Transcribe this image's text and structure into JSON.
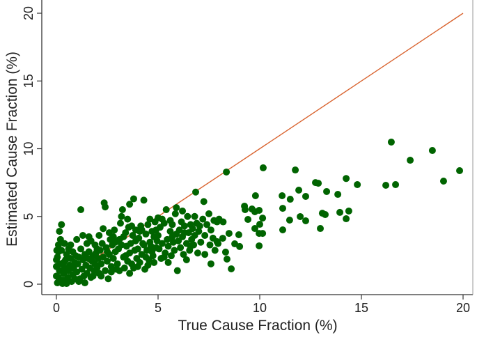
{
  "chart_data": {
    "type": "scatter",
    "title": "",
    "xlabel": "True Cause Fraction (%)",
    "ylabel": "Estimated Cause Fraction (%)",
    "xlim": [
      0,
      20
    ],
    "ylim": [
      0,
      20
    ],
    "xticks": [
      "0",
      "5",
      "10",
      "15",
      "20"
    ],
    "yticks": [
      "0",
      "5",
      "10",
      "15",
      "20"
    ],
    "grid": false,
    "legend": "none",
    "colors": {
      "points": "#006400",
      "reference_line": "#d9632e",
      "axis": "#333333"
    },
    "reference_line": {
      "from": [
        0,
        0
      ],
      "to": [
        20,
        20
      ]
    },
    "points": [
      [
        0.05,
        0.1
      ],
      [
        0.1,
        0.5
      ],
      [
        0.15,
        1.0
      ],
      [
        0.2,
        1.5
      ],
      [
        0.05,
        2.0
      ],
      [
        0.1,
        2.4
      ],
      [
        0.3,
        0.3
      ],
      [
        0.35,
        0.8
      ],
      [
        0.4,
        1.2
      ],
      [
        0.45,
        1.8
      ],
      [
        0.5,
        2.2
      ],
      [
        0.25,
        2.5
      ],
      [
        0.55,
        0.5
      ],
      [
        0.6,
        1.0
      ],
      [
        0.65,
        1.4
      ],
      [
        0.7,
        1.9
      ],
      [
        0.75,
        0.2
      ],
      [
        0.8,
        0.7
      ],
      [
        0.85,
        1.2
      ],
      [
        0.9,
        1.6
      ],
      [
        0.95,
        2.1
      ],
      [
        0.2,
        3.3
      ],
      [
        0.15,
        3.9
      ],
      [
        0.25,
        4.4
      ],
      [
        0.1,
        2.9
      ],
      [
        0.3,
        0.05
      ],
      [
        0.5,
        0.05
      ],
      [
        0.6,
        2.6
      ],
      [
        0.4,
        3.0
      ],
      [
        0.7,
        2.9
      ],
      [
        0.0,
        0.6
      ],
      [
        0.0,
        1.3
      ],
      [
        0.0,
        1.8
      ],
      [
        0.02,
        2.5
      ],
      [
        0.12,
        0.2
      ],
      [
        0.35,
        1.6
      ],
      [
        0.55,
        1.9
      ],
      [
        0.8,
        2.4
      ],
      [
        0.9,
        0.4
      ],
      [
        0.45,
        0.1
      ],
      [
        1.0,
        0.9
      ],
      [
        1.05,
        1.5
      ],
      [
        1.1,
        2.0
      ],
      [
        1.15,
        0.4
      ],
      [
        1.2,
        2.6
      ],
      [
        1.25,
        1.1
      ],
      [
        1.3,
        1.8
      ],
      [
        1.35,
        0.6
      ],
      [
        1.4,
        2.2
      ],
      [
        1.45,
        1.4
      ],
      [
        1.5,
        0.8
      ],
      [
        1.55,
        1.9
      ],
      [
        1.6,
        2.4
      ],
      [
        1.65,
        1.2
      ],
      [
        1.7,
        0.5
      ],
      [
        1.75,
        1.7
      ],
      [
        1.8,
        2.1
      ],
      [
        1.85,
        1.0
      ],
      [
        1.9,
        1.5
      ],
      [
        1.95,
        2.3
      ],
      [
        1.2,
        5.5
      ],
      [
        1.0,
        3.3
      ],
      [
        1.3,
        3.6
      ],
      [
        1.5,
        3.0
      ],
      [
        1.7,
        3.2
      ],
      [
        1.1,
        0.2
      ],
      [
        1.4,
        0.1
      ],
      [
        1.8,
        0.6
      ],
      [
        1.9,
        2.9
      ],
      [
        1.6,
        3.5
      ],
      [
        2.0,
        1.2
      ],
      [
        2.05,
        1.9
      ],
      [
        2.1,
        0.8
      ],
      [
        2.15,
        2.5
      ],
      [
        2.2,
        1.5
      ],
      [
        2.25,
        3.0
      ],
      [
        2.3,
        2.0
      ],
      [
        2.35,
        6.0
      ],
      [
        2.4,
        5.7
      ],
      [
        2.4,
        1.0
      ],
      [
        2.45,
        2.7
      ],
      [
        2.5,
        1.7
      ],
      [
        2.55,
        0.4
      ],
      [
        2.6,
        2.2
      ],
      [
        2.65,
        3.3
      ],
      [
        2.7,
        1.3
      ],
      [
        2.75,
        2.9
      ],
      [
        2.8,
        1.9
      ],
      [
        2.85,
        4.0
      ],
      [
        2.9,
        2.4
      ],
      [
        2.95,
        1.1
      ],
      [
        2.1,
        3.6
      ],
      [
        2.3,
        4.1
      ],
      [
        2.6,
        3.8
      ],
      [
        2.2,
        0.6
      ],
      [
        2.5,
        2.4
      ],
      [
        2.8,
        3.5
      ],
      [
        2.0,
        2.6
      ],
      [
        2.7,
        0.9
      ],
      [
        2.9,
        3.1
      ],
      [
        3.0,
        1.5
      ],
      [
        3.05,
        2.6
      ],
      [
        3.1,
        3.3
      ],
      [
        3.15,
        4.5
      ],
      [
        3.2,
        5.0
      ],
      [
        3.25,
        5.5
      ],
      [
        3.3,
        2.0
      ],
      [
        3.35,
        1.2
      ],
      [
        3.4,
        3.8
      ],
      [
        3.45,
        2.8
      ],
      [
        3.5,
        1.7
      ],
      [
        3.55,
        4.2
      ],
      [
        3.6,
        2.3
      ],
      [
        3.65,
        3.0
      ],
      [
        3.7,
        1.5
      ],
      [
        3.75,
        3.6
      ],
      [
        3.8,
        6.3
      ],
      [
        3.85,
        2.5
      ],
      [
        3.9,
        4.0
      ],
      [
        3.95,
        1.9
      ],
      [
        3.1,
        1.0
      ],
      [
        3.3,
        3.5
      ],
      [
        3.5,
        4.8
      ],
      [
        3.6,
        5.9
      ],
      [
        3.7,
        4.3
      ],
      [
        3.9,
        3.2
      ],
      [
        3.4,
        2.1
      ],
      [
        3.8,
        1.2
      ],
      [
        3.2,
        2.9
      ],
      [
        3.6,
        0.8
      ],
      [
        4.0,
        2.6
      ],
      [
        4.05,
        3.4
      ],
      [
        4.1,
        1.6
      ],
      [
        4.15,
        4.3
      ],
      [
        4.2,
        2.2
      ],
      [
        4.25,
        3.0
      ],
      [
        4.3,
        6.2
      ],
      [
        4.35,
        1.1
      ],
      [
        4.4,
        3.7
      ],
      [
        4.45,
        2.5
      ],
      [
        4.5,
        4.4
      ],
      [
        4.55,
        1.8
      ],
      [
        4.6,
        3.1
      ],
      [
        4.65,
        2.8
      ],
      [
        4.7,
        3.9
      ],
      [
        4.75,
        2.1
      ],
      [
        4.8,
        3.5
      ],
      [
        4.85,
        4.6
      ],
      [
        4.9,
        2.7
      ],
      [
        4.95,
        3.2
      ],
      [
        4.1,
        3.9
      ],
      [
        4.3,
        2.9
      ],
      [
        4.5,
        1.4
      ],
      [
        4.7,
        2.4
      ],
      [
        4.9,
        4.0
      ],
      [
        4.2,
        4.0
      ],
      [
        4.4,
        2.0
      ],
      [
        4.6,
        4.8
      ],
      [
        4.8,
        1.6
      ],
      [
        4.0,
        1.3
      ],
      [
        5.0,
        3.6
      ],
      [
        5.05,
        2.6
      ],
      [
        5.1,
        4.2
      ],
      [
        5.15,
        1.9
      ],
      [
        5.2,
        3.0
      ],
      [
        5.3,
        4.5
      ],
      [
        5.35,
        2.3
      ],
      [
        5.4,
        5.5
      ],
      [
        5.45,
        3.3
      ],
      [
        5.5,
        2.8
      ],
      [
        5.6,
        3.9
      ],
      [
        5.65,
        2.1
      ],
      [
        5.7,
        4.4
      ],
      [
        5.75,
        3.1
      ],
      [
        5.8,
        2.5
      ],
      [
        5.85,
        5.2
      ],
      [
        5.9,
        3.7
      ],
      [
        5.95,
        1.0
      ],
      [
        5.2,
        4.8
      ],
      [
        5.5,
        1.6
      ],
      [
        5.6,
        4.7
      ],
      [
        5.9,
        5.65
      ],
      [
        5.3,
        2.0
      ],
      [
        5.7,
        3.5
      ],
      [
        5.0,
        4.9
      ],
      [
        6.0,
        3.2
      ],
      [
        6.05,
        4.0
      ],
      [
        6.1,
        2.7
      ],
      [
        6.15,
        4.6
      ],
      [
        6.2,
        3.5
      ],
      [
        6.25,
        2.2
      ],
      [
        6.3,
        4.3
      ],
      [
        6.4,
        3.0
      ],
      [
        6.45,
        5.0
      ],
      [
        6.5,
        3.8
      ],
      [
        6.55,
        2.5
      ],
      [
        6.6,
        4.4
      ],
      [
        6.65,
        3.3
      ],
      [
        6.7,
        4.1
      ],
      [
        6.75,
        2.9
      ],
      [
        6.8,
        3.6
      ],
      [
        6.85,
        6.8
      ],
      [
        6.9,
        4.5
      ],
      [
        6.95,
        2.3
      ],
      [
        6.2,
        5.4
      ],
      [
        6.4,
        1.8
      ],
      [
        6.6,
        2.8
      ],
      [
        6.8,
        5.0
      ],
      [
        6.3,
        3.8
      ],
      [
        7.0,
        3.9
      ],
      [
        7.05,
        4.3
      ],
      [
        7.1,
        3.1
      ],
      [
        7.2,
        4.8
      ],
      [
        7.25,
        6.1
      ],
      [
        7.3,
        3.6
      ],
      [
        7.4,
        4.4
      ],
      [
        7.5,
        5.2
      ],
      [
        7.55,
        2.9
      ],
      [
        7.6,
        4.0
      ],
      [
        7.7,
        3.4
      ],
      [
        7.75,
        4.7
      ],
      [
        7.8,
        2.5
      ],
      [
        7.9,
        4.6
      ],
      [
        7.95,
        3.0
      ],
      [
        7.6,
        1.5
      ],
      [
        7.9,
        3.14
      ],
      [
        8.0,
        4.8
      ],
      [
        8.2,
        4.6
      ],
      [
        8.18,
        3.39
      ],
      [
        7.3,
        2.2
      ],
      [
        8.36,
        8.28
      ],
      [
        8.49,
        3.75
      ],
      [
        8.77,
        2.98
      ],
      [
        9.01,
        2.78
      ],
      [
        8.32,
        2.37
      ],
      [
        8.39,
        1.85
      ],
      [
        8.6,
        1.13
      ],
      [
        8.97,
        3.65
      ],
      [
        9.79,
        6.53
      ],
      [
        9.25,
        5.76
      ],
      [
        9.28,
        5.5
      ],
      [
        9.62,
        5.55
      ],
      [
        9.97,
        5.45
      ],
      [
        9.76,
        5.35
      ],
      [
        10.14,
        4.88
      ],
      [
        9.42,
        4.78
      ],
      [
        10.0,
        4.42
      ],
      [
        9.76,
        4.11
      ],
      [
        9.97,
        3.75
      ],
      [
        10.14,
        3.75
      ],
      [
        9.97,
        2.83
      ],
      [
        10.17,
        8.59
      ],
      [
        11.75,
        8.43
      ],
      [
        12.74,
        7.5
      ],
      [
        12.88,
        7.45
      ],
      [
        13.29,
        6.84
      ],
      [
        13.84,
        6.63
      ],
      [
        11.92,
        6.94
      ],
      [
        12.26,
        6.48
      ],
      [
        11.1,
        6.53
      ],
      [
        11.5,
        6.27
      ],
      [
        11.13,
        5.6
      ],
      [
        13.94,
        5.3
      ],
      [
        14.38,
        5.4
      ],
      [
        14.25,
        4.83
      ],
      [
        13.08,
        5.24
      ],
      [
        13.22,
        5.14
      ],
      [
        11.47,
        4.73
      ],
      [
        11.99,
        4.99
      ],
      [
        12.26,
        4.68
      ],
      [
        11.13,
        4.01
      ],
      [
        12.98,
        4.11
      ],
      [
        14.25,
        7.8
      ],
      [
        14.8,
        7.35
      ],
      [
        16.2,
        7.3
      ],
      [
        16.68,
        7.35
      ],
      [
        16.47,
        10.49
      ],
      [
        17.4,
        9.15
      ],
      [
        18.49,
        9.87
      ],
      [
        19.04,
        7.61
      ],
      [
        19.83,
        8.38
      ]
    ]
  }
}
